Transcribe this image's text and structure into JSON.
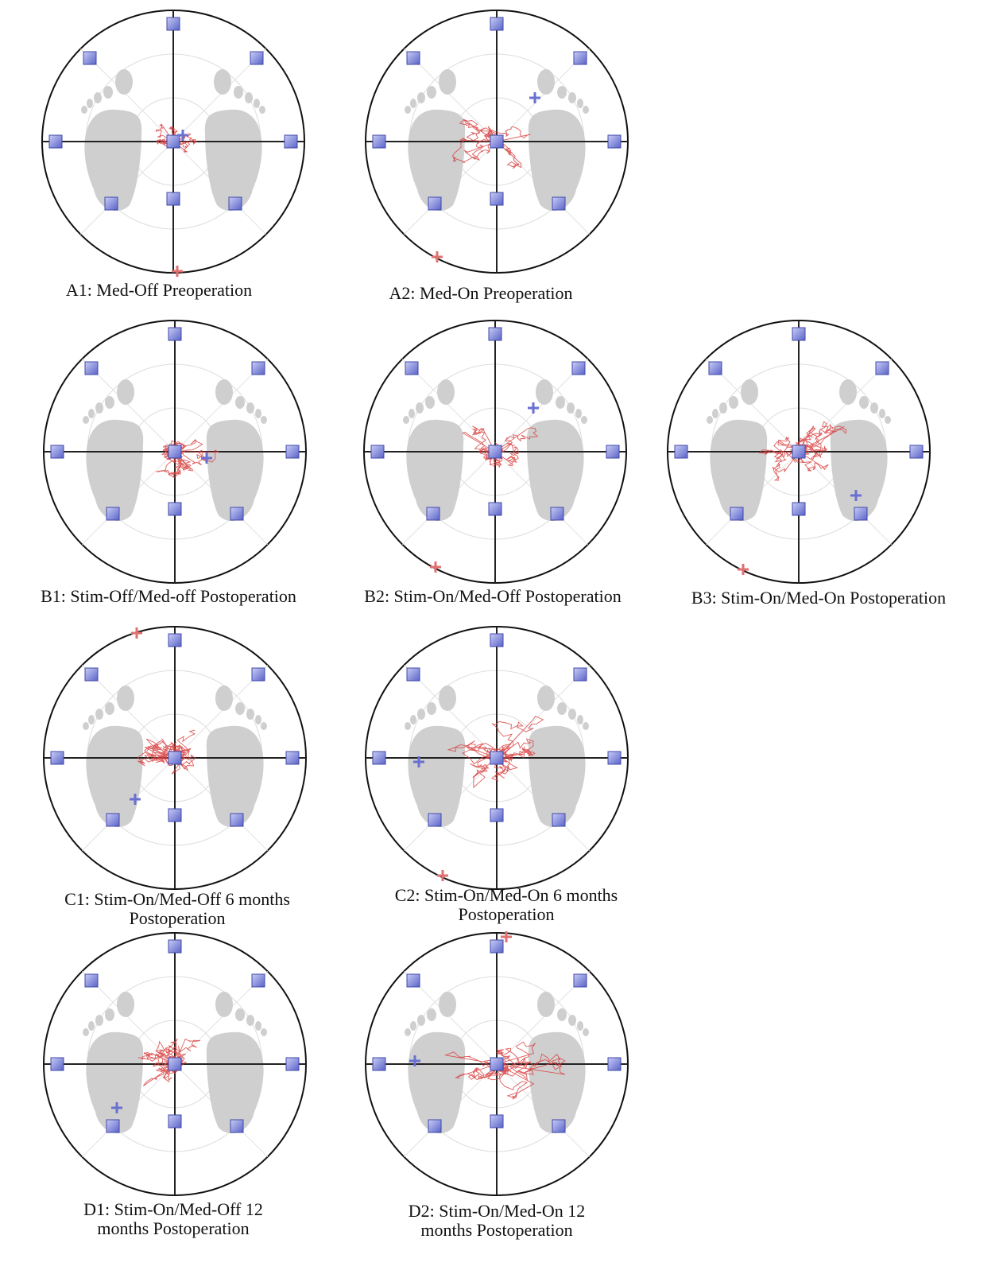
{
  "panels": [
    {
      "caption": [
        "A1: Med-Off Preoperation"
      ]
    },
    {
      "caption": [
        "A2: Med-On Preoperation"
      ]
    },
    {
      "caption": [
        "B1: Stim-Off/Med-off Postoperation"
      ]
    },
    {
      "caption": [
        "B2: Stim-On/Med-Off Postoperation"
      ]
    },
    {
      "caption": [
        "B3: Stim-On/Med-On Postoperation"
      ]
    },
    {
      "caption": [
        "C1: Stim-On/Med-Off 6 months",
        "Postoperation"
      ]
    },
    {
      "caption": [
        "C2: Stim-On/Med-On 6 months",
        "Postoperation"
      ]
    },
    {
      "caption": [
        "D1: Stim-On/Med-Off 12",
        "months Postoperation"
      ]
    },
    {
      "caption": [
        "D2: Stim-On/Med-On 12",
        "months Postoperation"
      ]
    }
  ]
}
